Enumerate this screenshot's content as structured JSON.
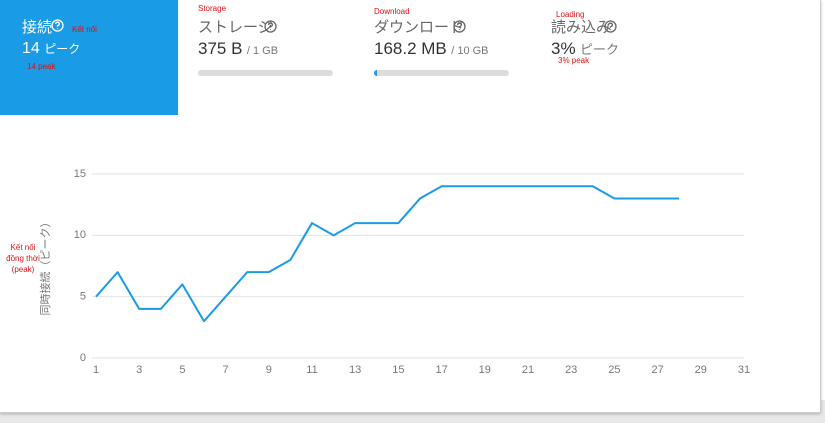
{
  "cards": [
    {
      "title": "接続",
      "value": "14",
      "unit": "ピーク",
      "annotations": [
        "Kết nối",
        "14 peak"
      ]
    },
    {
      "annotation": "Storage",
      "title": "ストレージ",
      "value": "375 B",
      "limit": "/ 1 GB"
    },
    {
      "annotation": "Download",
      "title": "ダウンロード",
      "value": "168.2 MB",
      "limit": "/ 10 GB"
    },
    {
      "annotation": "Loading",
      "title": "読み込み",
      "value": "3%",
      "unit": "ピーク",
      "annotation2": "3% peak"
    }
  ],
  "chart_data": {
    "type": "line",
    "y_label": "同時接続（ピーク）",
    "annotation": "Kết nối đồng thời (peak)",
    "x": [
      1,
      2,
      3,
      4,
      5,
      6,
      7,
      8,
      9,
      10,
      11,
      12,
      13,
      14,
      15,
      16,
      17,
      18,
      19,
      20,
      21,
      22,
      23,
      24,
      25,
      26,
      27,
      28
    ],
    "series": [
      {
        "color": "#1a9be6",
        "values": [
          5,
          7,
          4,
          4,
          6,
          3,
          5,
          7,
          7,
          8,
          11,
          10,
          11,
          11,
          11,
          13,
          14,
          14,
          14,
          14,
          14,
          14,
          14,
          14,
          13,
          13,
          13,
          13
        ]
      }
    ],
    "xlim": [
      1,
      31
    ],
    "xticks": [
      1,
      3,
      5,
      7,
      9,
      11,
      13,
      15,
      17,
      19,
      21,
      23,
      25,
      27,
      29,
      31
    ],
    "ylim": [
      0,
      15
    ],
    "yticks": [
      0,
      5,
      10,
      15
    ],
    "grid": true
  }
}
